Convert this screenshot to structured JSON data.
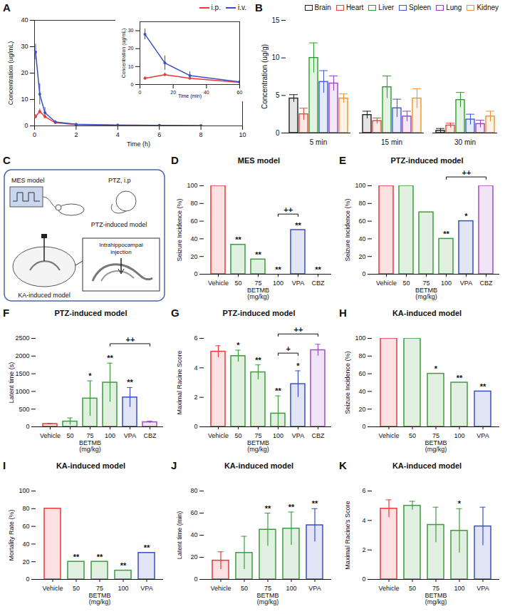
{
  "chart_data": [
    {
      "panel": "A",
      "type": "line",
      "x": [
        0.05,
        0.25,
        0.5,
        1,
        2,
        4,
        6,
        8
      ],
      "xlim": [
        0,
        10
      ],
      "xticks": [
        0,
        2,
        4,
        6,
        8,
        10
      ],
      "ylim": [
        0,
        40
      ],
      "yticks": [
        0,
        10,
        20,
        30,
        40
      ],
      "x_label": "Time (h)",
      "y_label": "Concentration (ug/mL)",
      "legend": "top-right",
      "marker": "dot",
      "series": [
        {
          "name": "i.p.",
          "color": "#e8393a",
          "values": [
            3.5,
            5.5,
            3.5,
            1.2,
            0.5,
            0.3,
            0.2,
            0.1
          ],
          "errors": [
            0.8,
            1,
            0.8,
            0.3,
            0.1,
            0.1,
            0.05,
            0.05
          ]
        },
        {
          "name": "i.v.",
          "color": "#3a4fc4",
          "values": [
            28,
            12,
            5,
            1.5,
            0.6,
            0.3,
            0.2,
            0.1
          ],
          "errors": [
            3,
            4,
            2,
            0.5,
            0.2,
            0.1,
            0.05,
            0.05
          ]
        }
      ],
      "inset": {
        "type": "line",
        "x": [
          3,
          15,
          30,
          60
        ],
        "xlim": [
          0,
          60
        ],
        "xticks": [
          0,
          20,
          40,
          60
        ],
        "ylim": [
          0,
          35
        ],
        "yticks": [
          0,
          10,
          20,
          30
        ],
        "x_label": "Time (min)",
        "y_label": "Concentration (ug/mL)",
        "marker": "dot",
        "series": [
          {
            "name": "i.p.",
            "color": "#e8393a",
            "values": [
              3.5,
              5.5,
              3.5,
              1.2
            ],
            "errors": [
              0.8,
              1,
              0.8,
              0.3
            ]
          },
          {
            "name": "i.v.",
            "color": "#3a4fc4",
            "values": [
              28,
              12,
              5,
              1.5
            ],
            "errors": [
              3,
              4,
              2,
              0.5
            ]
          }
        ]
      }
    },
    {
      "panel": "B",
      "type": "bar",
      "categories": [
        "5 min",
        "15 min",
        "30 min"
      ],
      "ylim": [
        0,
        15
      ],
      "yticks": [
        0,
        5,
        10,
        15
      ],
      "y_label": "Concentration (ug/g)",
      "legend": "top",
      "series": [
        {
          "name": "Brain",
          "color": "#222222",
          "values": [
            4.6,
            2.4,
            0.3
          ],
          "errors": [
            0.5,
            0.5,
            0.3
          ]
        },
        {
          "name": "Heart",
          "color": "#e8473c",
          "values": [
            2.5,
            1.6,
            1.0
          ],
          "errors": [
            0.8,
            0.4,
            0.3
          ]
        },
        {
          "name": "Liver",
          "color": "#2ca02c",
          "values": [
            10,
            6.1,
            4.4
          ],
          "errors": [
            2,
            1.5,
            1
          ]
        },
        {
          "name": "Spleen",
          "color": "#3b5bd6",
          "values": [
            6.8,
            3.3,
            1.8
          ],
          "errors": [
            1.5,
            1.2,
            0.7
          ]
        },
        {
          "name": "Lung",
          "color": "#9b3fc8",
          "values": [
            6.6,
            2.2,
            1.2
          ],
          "errors": [
            1,
            0.7,
            0.5
          ]
        },
        {
          "name": "Kidney",
          "color": "#f0922b",
          "values": [
            4.6,
            4.6,
            2.2
          ],
          "errors": [
            0.6,
            1.3,
            0.7
          ]
        }
      ]
    },
    {
      "panel": "D",
      "type": "bar",
      "title": "MES model",
      "categories": [
        "Vehicle",
        "50",
        "75",
        "100",
        "VPA",
        "CBZ"
      ],
      "values": [
        100,
        33.3,
        16.7,
        0,
        50,
        0
      ],
      "colors": [
        "#e8393a",
        "#3f9b3f",
        "#3f9b3f",
        "#3f9b3f",
        "#3a4fc4",
        "#9d4fc4"
      ],
      "ylim": [
        0,
        100
      ],
      "yticks": [
        0,
        20,
        40,
        60,
        80,
        100
      ],
      "y_label": "Seizure Incidence (%)",
      "x_group": {
        "label": "BETMB (mg/kg)",
        "categories": [
          "50",
          "75",
          "100"
        ]
      },
      "annotations": [
        {
          "category": "50",
          "text": "**"
        },
        {
          "category": "75",
          "text": "**"
        },
        {
          "category": "100",
          "text": "**"
        },
        {
          "category": "VPA",
          "text": "**"
        },
        {
          "category": "CBZ",
          "text": "**"
        }
      ],
      "brackets": [
        {
          "from": "100",
          "to": "VPA",
          "text": "++",
          "y": 68
        }
      ]
    },
    {
      "panel": "E",
      "type": "bar",
      "title": "PTZ-induced model",
      "categories": [
        "Vehicle",
        "50",
        "75",
        "100",
        "VPA",
        "CBZ"
      ],
      "values": [
        100,
        100,
        70,
        40,
        60,
        100
      ],
      "colors": [
        "#e8393a",
        "#3f9b3f",
        "#3f9b3f",
        "#3f9b3f",
        "#3a4fc4",
        "#9d4fc4"
      ],
      "ylim": [
        0,
        100
      ],
      "yticks": [
        0,
        20,
        40,
        60,
        80,
        100
      ],
      "y_label": "Seizure Incidence (%)",
      "x_group": {
        "label": "BETMB (mg/kg)",
        "categories": [
          "50",
          "75",
          "100"
        ]
      },
      "annotations": [
        {
          "category": "100",
          "text": "**"
        },
        {
          "category": "VPA",
          "text": "*"
        }
      ],
      "brackets": [
        {
          "from": "100",
          "to": "CBZ",
          "text": "++",
          "y": 110
        }
      ]
    },
    {
      "panel": "F",
      "type": "bar",
      "title": "PTZ-induced model",
      "categories": [
        "Vehicle",
        "50",
        "75",
        "100",
        "VPA",
        "CBZ"
      ],
      "values": [
        80,
        150,
        800,
        1250,
        830,
        130
      ],
      "errors": [
        20,
        100,
        500,
        550,
        280,
        30
      ],
      "colors": [
        "#e8393a",
        "#3f9b3f",
        "#3f9b3f",
        "#3f9b3f",
        "#3a4fc4",
        "#9d4fc4"
      ],
      "ylim": [
        0,
        2500
      ],
      "yticks": [
        0,
        500,
        1000,
        1500,
        2000,
        2500
      ],
      "y_label": "Latent time (s)",
      "x_group": {
        "label": "BETMB (mg/kg)",
        "categories": [
          "50",
          "75",
          "100"
        ]
      },
      "annotations": [
        {
          "category": "75",
          "text": "*"
        },
        {
          "category": "100",
          "text": "**"
        },
        {
          "category": "VPA",
          "text": "**"
        }
      ],
      "brackets": [
        {
          "from": "100",
          "to": "CBZ",
          "text": "++",
          "y": 2350
        }
      ]
    },
    {
      "panel": "G",
      "type": "bar",
      "title": "PTZ-induced model",
      "categories": [
        "Vehicle",
        "50",
        "75",
        "100",
        "VPA",
        "CBZ"
      ],
      "values": [
        5.1,
        4.8,
        3.7,
        0.9,
        2.9,
        5.2
      ],
      "errors": [
        0.4,
        0.4,
        0.5,
        1.2,
        0.9,
        0.4
      ],
      "colors": [
        "#e8393a",
        "#3f9b3f",
        "#3f9b3f",
        "#3f9b3f",
        "#3a4fc4",
        "#9d4fc4"
      ],
      "ylim": [
        0,
        6
      ],
      "yticks": [
        0,
        2,
        4,
        6
      ],
      "y_label": "Maximal Racine Score",
      "x_group": {
        "label": "BETMB (mg/kg)",
        "categories": [
          "50",
          "75",
          "100"
        ]
      },
      "annotations": [
        {
          "category": "50",
          "text": "*"
        },
        {
          "category": "75",
          "text": "**"
        },
        {
          "category": "100",
          "text": "**"
        },
        {
          "category": "VPA",
          "text": "*"
        }
      ],
      "brackets": [
        {
          "from": "100",
          "to": "VPA",
          "text": "+",
          "y": 5.0
        },
        {
          "from": "100",
          "to": "CBZ",
          "text": "++",
          "y": 6.3
        }
      ]
    },
    {
      "panel": "H",
      "type": "bar",
      "title": "KA-induced model",
      "categories": [
        "Vehicle",
        "50",
        "75",
        "100",
        "VPA"
      ],
      "values": [
        100,
        100,
        60,
        50,
        40
      ],
      "colors": [
        "#e8393a",
        "#3f9b3f",
        "#3f9b3f",
        "#3f9b3f",
        "#3a4fc4"
      ],
      "ylim": [
        0,
        100
      ],
      "yticks": [
        0,
        20,
        40,
        60,
        80,
        100
      ],
      "y_label": "Seizure Incidence (%)",
      "x_group": {
        "label": "BETMB (mg/kg)",
        "categories": [
          "50",
          "75",
          "100"
        ]
      },
      "annotations": [
        {
          "category": "75",
          "text": "*"
        },
        {
          "category": "100",
          "text": "**"
        },
        {
          "category": "VPA",
          "text": "**"
        }
      ]
    },
    {
      "panel": "I",
      "type": "bar",
      "title": "KA-induced model",
      "categories": [
        "Vehicle",
        "50",
        "75",
        "100",
        "VPA"
      ],
      "values": [
        80,
        20,
        20,
        10,
        30
      ],
      "colors": [
        "#e8393a",
        "#3f9b3f",
        "#3f9b3f",
        "#3f9b3f",
        "#3a4fc4"
      ],
      "ylim": [
        0,
        100
      ],
      "yticks": [
        0,
        20,
        40,
        60,
        80,
        100
      ],
      "y_label": "Mortality Rate (%)",
      "x_group": {
        "label": "BETMB (mg/kg)",
        "categories": [
          "50",
          "75",
          "100"
        ]
      },
      "annotations": [
        {
          "category": "50",
          "text": "**"
        },
        {
          "category": "75",
          "text": "**"
        },
        {
          "category": "100",
          "text": "**"
        },
        {
          "category": "VPA",
          "text": "**"
        }
      ]
    },
    {
      "panel": "J",
      "type": "bar",
      "title": "KA-induced model",
      "categories": [
        "Vehicle",
        "50",
        "75",
        "100",
        "VPA"
      ],
      "values": [
        17,
        24,
        45,
        46,
        49
      ],
      "errors": [
        8,
        15,
        15,
        15,
        15
      ],
      "colors": [
        "#e8393a",
        "#3f9b3f",
        "#3f9b3f",
        "#3f9b3f",
        "#3a4fc4"
      ],
      "ylim": [
        0,
        80
      ],
      "yticks": [
        0,
        20,
        40,
        60,
        80
      ],
      "y_label": "Latent time (min)",
      "x_group": {
        "label": "BETMB (mg/kg)",
        "categories": [
          "50",
          "75",
          "100"
        ]
      },
      "annotations": [
        {
          "category": "75",
          "text": "**"
        },
        {
          "category": "100",
          "text": "**"
        },
        {
          "category": "VPA",
          "text": "**"
        }
      ]
    },
    {
      "panel": "K",
      "type": "bar",
      "title": "KA-induced model",
      "categories": [
        "Vehicle",
        "50",
        "75",
        "100",
        "VPA"
      ],
      "values": [
        4.8,
        5.0,
        3.7,
        3.3,
        3.6
      ],
      "errors": [
        0.6,
        0.3,
        1.2,
        1.5,
        1.3
      ],
      "colors": [
        "#e8393a",
        "#3f9b3f",
        "#3f9b3f",
        "#3f9b3f",
        "#3a4fc4"
      ],
      "ylim": [
        0,
        6
      ],
      "yticks": [
        0,
        2,
        4,
        6
      ],
      "y_label": "Maximal Racine's Score",
      "x_group": {
        "label": "BETMB (mg/kg)",
        "categories": [
          "50",
          "75",
          "100"
        ]
      },
      "annotations": [
        {
          "category": "100",
          "text": "*"
        }
      ]
    }
  ],
  "diagram": {
    "panel": "C",
    "texts": {
      "mes": "MES model",
      "ptz": "PTZ-induced model",
      "ptz_route": "PTZ, i.p",
      "ka": "KA-induced model",
      "injection": "Intrahippocampal injection"
    }
  }
}
